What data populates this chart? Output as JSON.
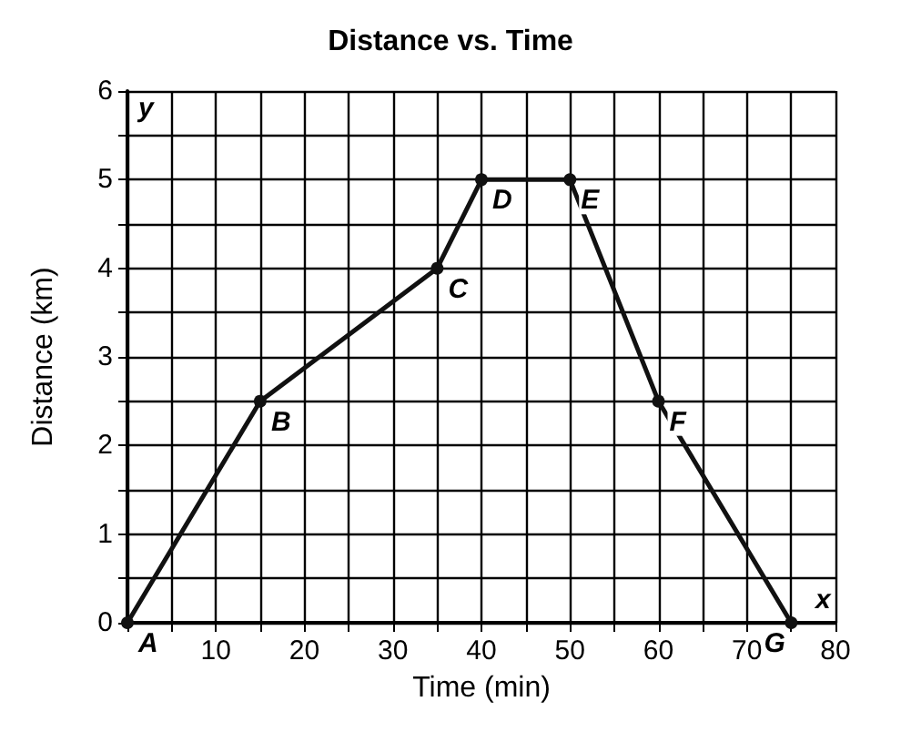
{
  "chart_data": {
    "type": "line",
    "title": "Distance vs. Time",
    "xlabel": "Time (min)",
    "ylabel": "Distance (km)",
    "x": [
      0,
      15,
      35,
      40,
      50,
      60,
      75
    ],
    "series": [
      {
        "color": "#111111",
        "values": [
          0,
          2.5,
          4,
          5,
          5,
          2.5,
          0
        ]
      }
    ],
    "xlim": [
      0,
      80
    ],
    "ylim": [
      0,
      6
    ],
    "xticks": [
      {
        "value": 0,
        "label": null
      },
      {
        "value": 5,
        "label": null
      },
      10,
      {
        "value": 15,
        "label": null
      },
      20,
      {
        "value": 25,
        "label": null
      },
      30,
      {
        "value": 35,
        "label": null
      },
      40,
      {
        "value": 45,
        "label": null
      },
      50,
      {
        "value": 55,
        "label": null
      },
      60,
      {
        "value": 65,
        "label": null
      },
      70,
      {
        "value": 75,
        "label": null
      },
      80
    ],
    "yticks": [
      0,
      {
        "value": 0.5,
        "label": null
      },
      1,
      {
        "value": 1.5,
        "label": null
      },
      2,
      {
        "value": 2.5,
        "label": null
      },
      3,
      {
        "value": 3.5,
        "label": null
      },
      4,
      {
        "value": 4.5,
        "label": null
      },
      5,
      {
        "value": 5.5,
        "label": null
      },
      6
    ],
    "grid": true,
    "marker": "circle",
    "line_style": "solid",
    "annotations": [
      {
        "text": "A",
        "x": 0,
        "y": 0
      },
      {
        "text": "B",
        "x": 15,
        "y": 2.5
      },
      {
        "text": "C",
        "x": 35,
        "y": 4
      },
      {
        "text": "D",
        "x": 40,
        "y": 5
      },
      {
        "text": "E",
        "x": 50,
        "y": 5
      },
      {
        "text": "F",
        "x": 60,
        "y": 2.5
      },
      {
        "text": "G",
        "x": 75,
        "y": 0
      },
      "x",
      "y"
    ]
  }
}
